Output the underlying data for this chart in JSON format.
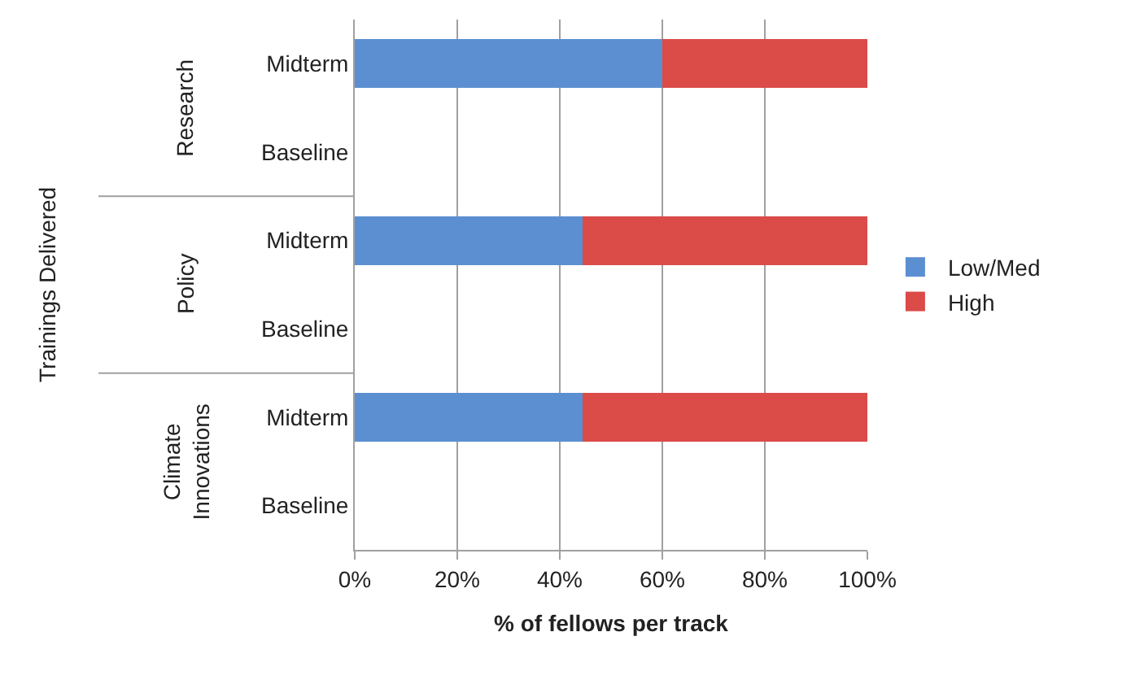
{
  "chart_data": {
    "type": "bar",
    "orientation": "horizontal",
    "stacked": true,
    "xlabel": "% of fellows per track",
    "categories": [
      "Midterm",
      "Baseline",
      "Midterm",
      "Baseline",
      "Midterm",
      "Baseline"
    ],
    "annotations": [
      "Trainings Delivered",
      "Research",
      "Policy",
      "Climate Innovations"
    ],
    "series": [
      {
        "name": "Low/Med",
        "color": "#5b8fd1",
        "values": [
          60,
          null,
          44.4,
          null,
          44.4,
          null
        ]
      },
      {
        "name": "High",
        "color": "#db4b48",
        "values": [
          40,
          null,
          55.6,
          null,
          55.6,
          null
        ]
      }
    ],
    "xlim": [
      0,
      100
    ],
    "xticks": [
      {
        "value": 0,
        "label": "0%"
      },
      {
        "value": 20,
        "label": "20%"
      },
      {
        "value": 40,
        "label": "40%"
      },
      {
        "value": 60,
        "label": "60%"
      },
      {
        "value": 80,
        "label": "80%"
      },
      {
        "value": 100,
        "label": "100%"
      }
    ],
    "grid": "x",
    "legend": "right"
  }
}
